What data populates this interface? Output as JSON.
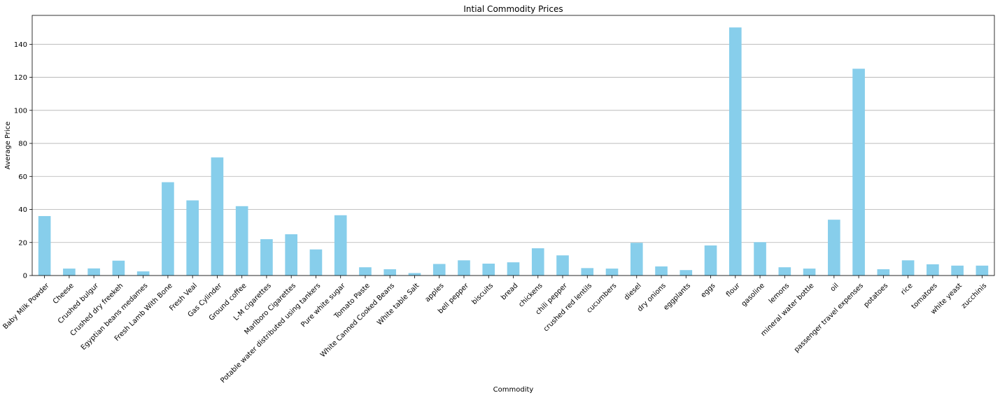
{
  "chart_data": {
    "type": "bar",
    "title": "Intial Commodity Prices",
    "xlabel": "Commodity",
    "ylabel": "Average Price",
    "ylim": [
      0,
      157.5
    ],
    "yticks": [
      0,
      20,
      40,
      60,
      80,
      100,
      120,
      140
    ],
    "grid": "y",
    "bar_color": "#87CEEB",
    "categories": [
      "Baby Milk Powder",
      "Cheese",
      "Crushed bulgur",
      "Crushed dry freekeh",
      "Egyptian beans medames",
      "Fresh Lamb With Bone",
      "Fresh Veal",
      "Gas Cylinder",
      "Ground coffee",
      "L-M cigarettes",
      "Marlboro Cigarettes",
      "Potable water distributed using tankers",
      "Pure white sugar",
      "Tomato Paste",
      "White Canned Cooked Beans",
      "White table Salt",
      "apples",
      "bell pepper",
      "biscuits",
      "bread",
      "chickens",
      "chili pepper",
      "crushed red lentils",
      "cucumbers",
      "diesel",
      "dry onions",
      "eggplants",
      "eggs",
      "flour",
      "gasoline",
      "lemons",
      "mineral water bottle",
      "oil",
      "passenger travel expenses",
      "potatoes",
      "rice",
      "tomatoes",
      "white yeast",
      "zucchinis"
    ],
    "values": [
      36,
      4.2,
      4.3,
      9,
      2.5,
      56.5,
      45.5,
      71.5,
      42,
      22,
      25,
      15.8,
      36.5,
      5,
      3.8,
      1.5,
      7,
      9.2,
      7.2,
      8,
      16.5,
      12.2,
      4.5,
      4.2,
      19.8,
      5.5,
      3.3,
      18.2,
      150.2,
      20.2,
      5,
      4.2,
      33.8,
      125.2,
      3.8,
      9.2,
      6.8,
      6,
      6
    ]
  }
}
